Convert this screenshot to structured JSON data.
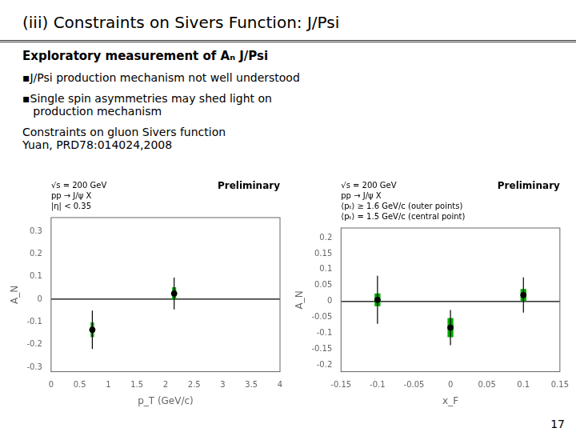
{
  "title": "(iii) Constraints on Sivers Function: J/Psi",
  "annotations": [
    "Exploratory measurement of Aₙ J/Psi",
    "▪J/Psi production mechanism not well understood",
    "▪Single spin asymmetries may shed light on\n   production mechanism",
    "Constraints on gluon Sivers function\nYuan, PRD78:014024,2008"
  ],
  "page_number": "17",
  "chart_data": [
    {
      "type": "scatter",
      "xlabel": "p_T (GeV/c)",
      "ylabel": "A_N",
      "x": [
        0.72,
        2.15
      ],
      "values": [
        -0.135,
        0.025
      ],
      "errors_y": [
        0.085,
        0.07
      ],
      "box_widths": [
        0.06,
        0.07
      ],
      "box_heights": [
        0.065,
        0.055
      ],
      "box_color": "#00aa00",
      "color": "#000000",
      "hlines": [
        0
      ],
      "xlim": [
        0,
        4
      ],
      "ylim": [
        -0.32,
        0.36
      ],
      "xticks": [
        0,
        0.5,
        1,
        1.5,
        2,
        2.5,
        3,
        3.5,
        4
      ],
      "yticks": [
        -0.3,
        -0.2,
        -0.1,
        0,
        0.1,
        0.2,
        0.3
      ],
      "grid": false,
      "annotations": [
        "√s = 200 GeV",
        "pp → J/ψ X",
        "|η| < 0.35",
        "Preliminary"
      ]
    },
    {
      "type": "scatter",
      "xlabel": "x_F",
      "ylabel": "A_N",
      "x": [
        -0.1,
        0.0,
        0.1
      ],
      "values": [
        0.005,
        -0.082,
        0.02
      ],
      "errors_y": [
        0.075,
        0.055,
        0.055
      ],
      "box_widths": [
        0.008,
        0.008,
        0.008
      ],
      "box_heights": [
        0.04,
        0.06,
        0.038
      ],
      "box_color": "#00aa00",
      "color": "#000000",
      "hlines": [
        0
      ],
      "xlim": [
        -0.15,
        0.15
      ],
      "ylim": [
        -0.22,
        0.23
      ],
      "xticks": [
        -0.15,
        -0.1,
        -0.05,
        0,
        0.05,
        0.1,
        0.15
      ],
      "yticks": [
        -0.2,
        -0.15,
        -0.1,
        -0.05,
        0,
        0.05,
        0.1,
        0.15,
        0.2
      ],
      "grid": false,
      "annotations": [
        "√s = 200 GeV",
        "pp → J/ψ X",
        "⟨pₜ⟩ ≥ 1.6 GeV/c (outer points)",
        "⟨pₜ⟩ = 1.5 GeV/c (central point)",
        "Preliminary"
      ]
    }
  ]
}
